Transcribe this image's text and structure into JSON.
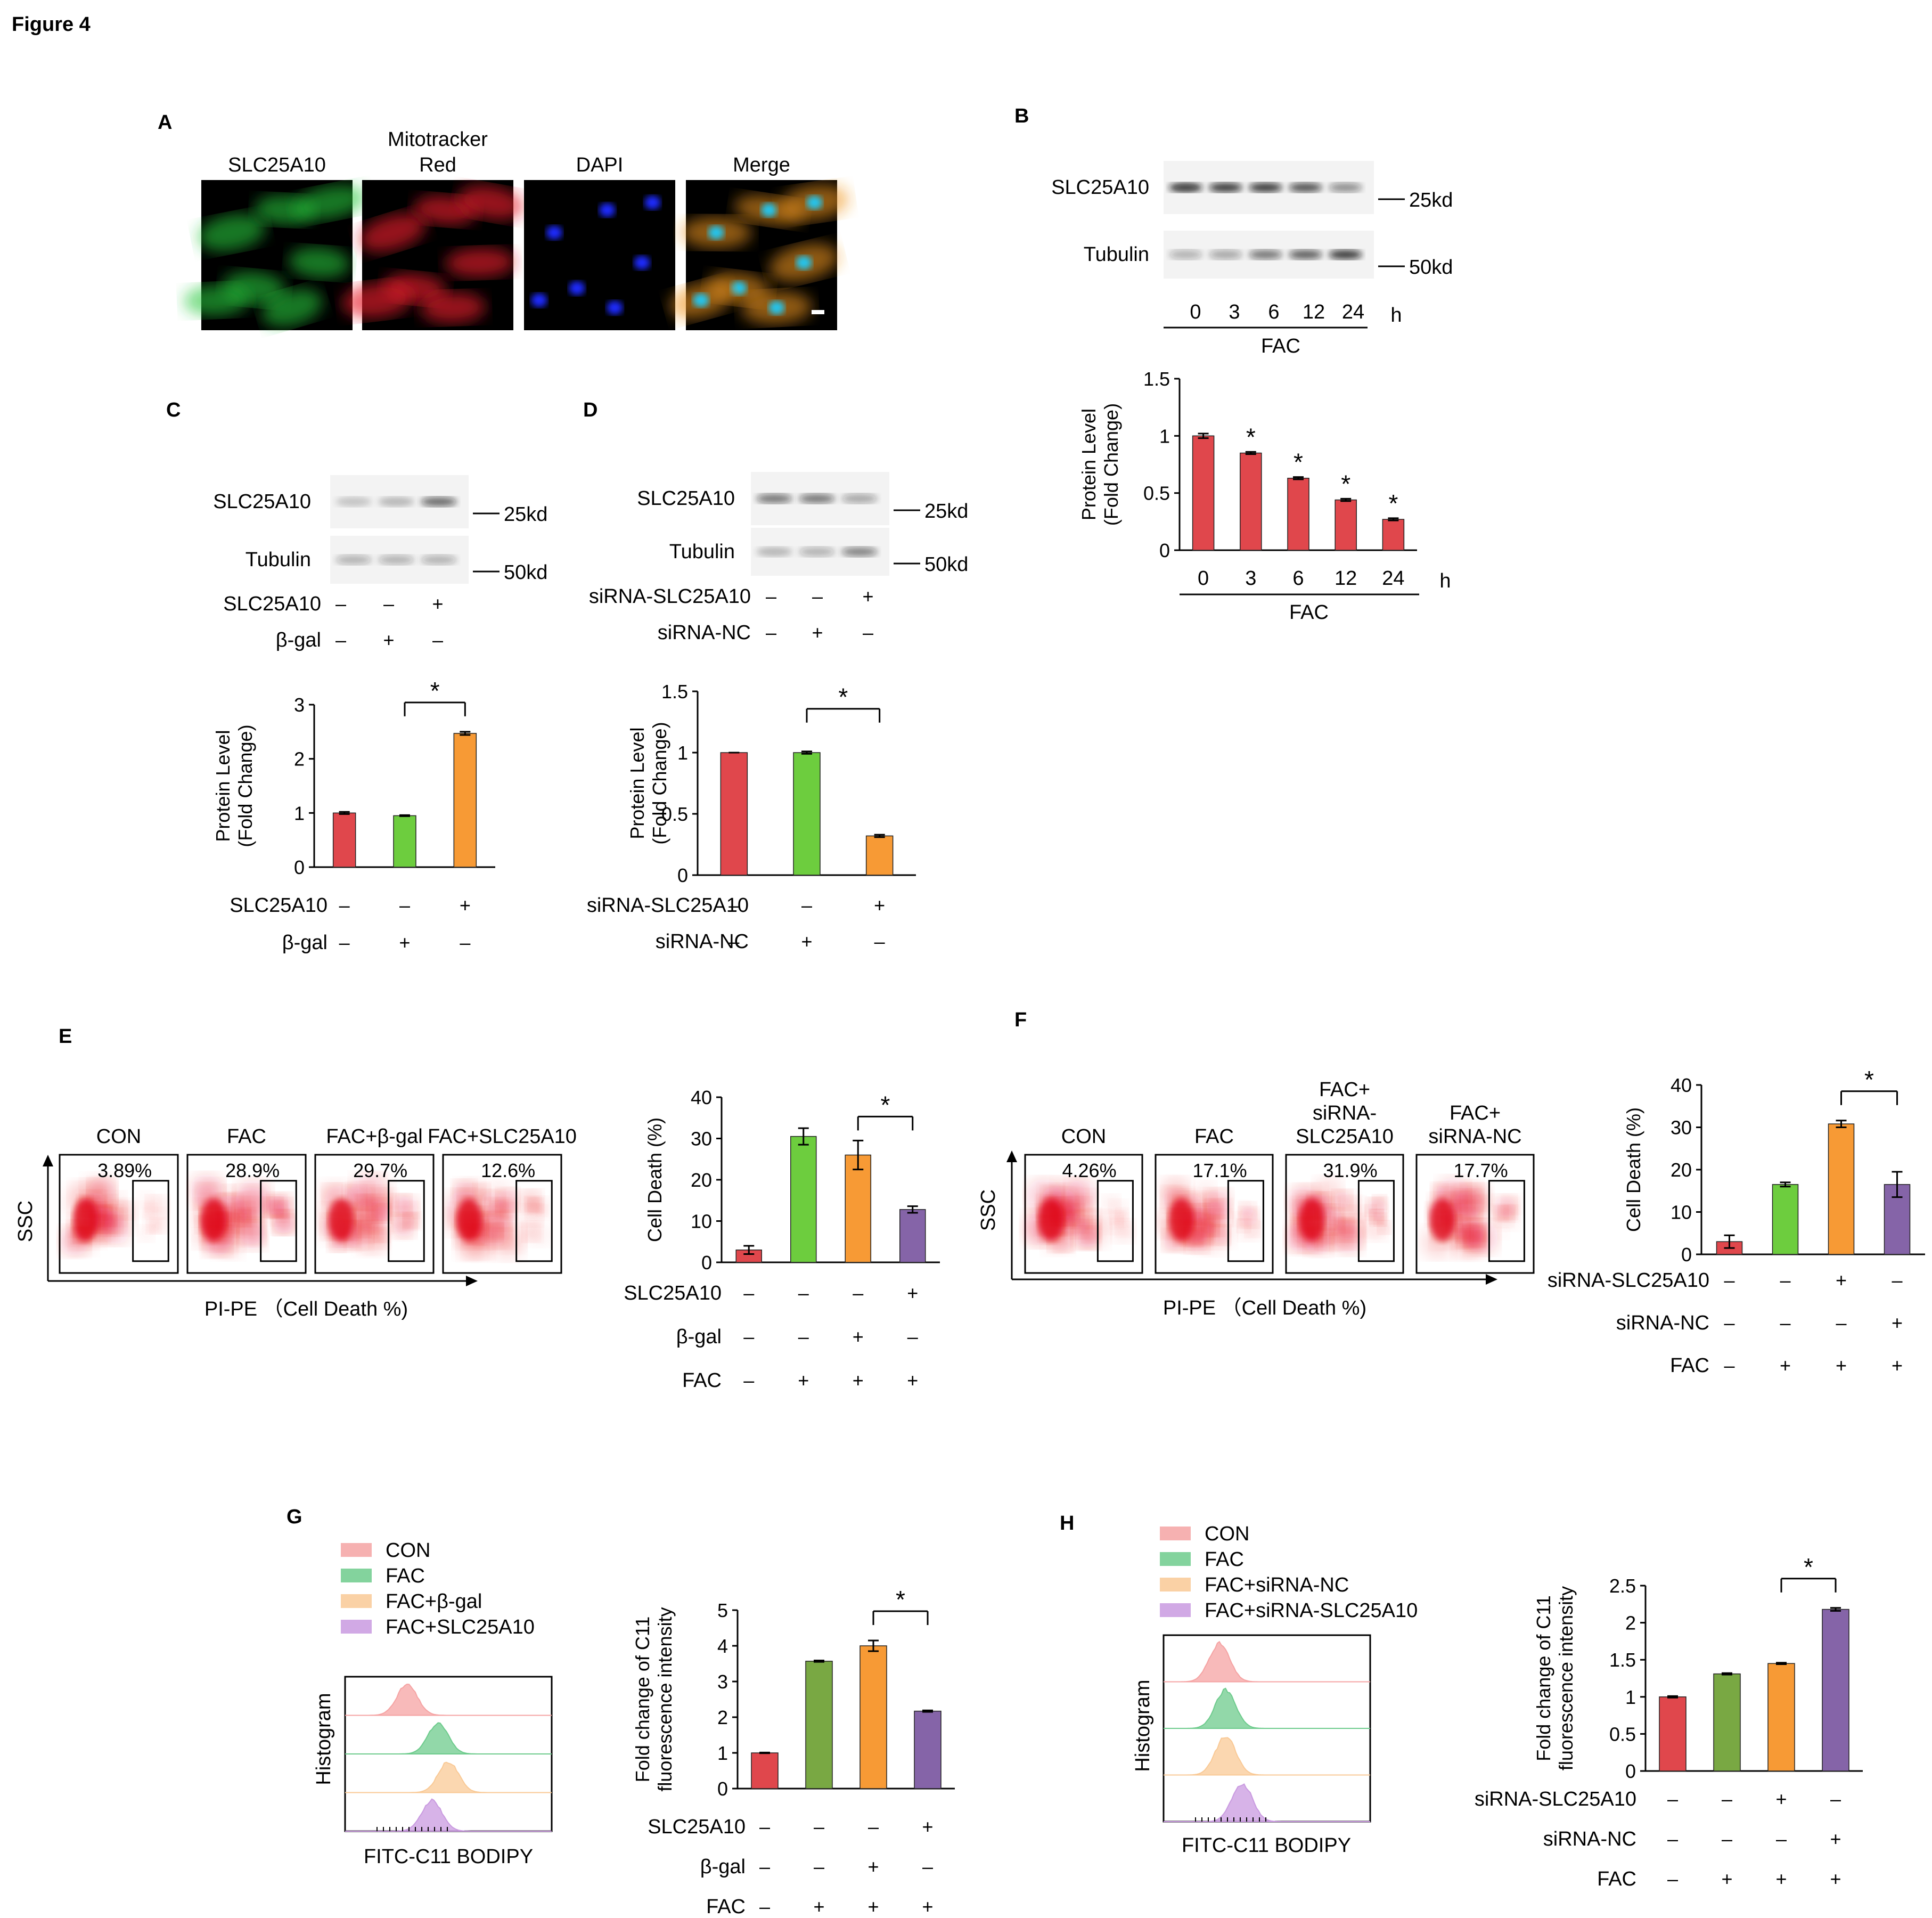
{
  "figure_title": "Figure 4",
  "colors": {
    "red": "#e0474c",
    "green": "#6dcd3e",
    "orange": "#f79a35",
    "purple": "#8564a8",
    "olive": "#79a843",
    "hist_con": "#f5a3a3",
    "hist_fac": "#6dcb8c",
    "hist_gal": "#f9c995",
    "hist_slc": "#c99ae0"
  },
  "panelA": {
    "label": "A",
    "images": [
      {
        "title": "SLC25A10",
        "channel": "green"
      },
      {
        "title": "Mitotracker\nRed",
        "channel": "red"
      },
      {
        "title": "DAPI",
        "channel": "blue"
      },
      {
        "title": "Merge",
        "channel": "merge"
      }
    ]
  },
  "panelB": {
    "label": "B",
    "blot_rows": [
      {
        "name": "SLC25A10",
        "marker": "25kd"
      },
      {
        "name": "Tubulin",
        "marker": "50kd"
      }
    ],
    "lanes": [
      "0",
      "3",
      "6",
      "12",
      "24"
    ],
    "unit": "h",
    "group": "FAC"
  },
  "panelC": {
    "label": "C",
    "blot_rows": [
      {
        "name": "SLC25A10",
        "marker": "25kd"
      },
      {
        "name": "Tubulin",
        "marker": "50kd"
      }
    ],
    "conditions": [
      {
        "name": "SLC25A10",
        "signs": [
          "–",
          "–",
          "+"
        ]
      },
      {
        "name": "β-gal",
        "signs": [
          "–",
          "+",
          "–"
        ]
      }
    ]
  },
  "panelD": {
    "label": "D",
    "blot_rows": [
      {
        "name": "SLC25A10",
        "marker": "25kd"
      },
      {
        "name": "Tubulin",
        "marker": "50kd"
      }
    ],
    "conditions": [
      {
        "name": "siRNA-SLC25A10",
        "signs": [
          "–",
          "–",
          "+"
        ]
      },
      {
        "name": "siRNA-NC",
        "signs": [
          "–",
          "+",
          "–"
        ]
      }
    ]
  },
  "panelE": {
    "label": "E",
    "flow_titles": [
      "CON",
      "FAC",
      "FAC+β-gal",
      "FAC+SLC25A10"
    ],
    "percentages": [
      "3.89%",
      "28.9%",
      "29.7%",
      "12.6%"
    ],
    "y_axis": "SSC",
    "x_axis": "PI-PE （Cell Death %)",
    "conditions": [
      {
        "name": "SLC25A10",
        "signs": [
          "–",
          "–",
          "–",
          "+"
        ]
      },
      {
        "name": "β-gal",
        "signs": [
          "–",
          "–",
          "+",
          "–"
        ]
      },
      {
        "name": "FAC",
        "signs": [
          "–",
          "+",
          "+",
          "+"
        ]
      }
    ]
  },
  "panelF": {
    "label": "F",
    "flow_titles": [
      "CON",
      "FAC",
      "FAC+\nsiRNA-\nSLC25A10",
      "FAC+\nsiRNA-NC"
    ],
    "percentages": [
      "4.26%",
      "17.1%",
      "31.9%",
      "17.7%"
    ],
    "y_axis": "SSC",
    "x_axis": "PI-PE （Cell Death %)",
    "conditions": [
      {
        "name": "siRNA-SLC25A10",
        "signs": [
          "–",
          "–",
          "+",
          "–"
        ]
      },
      {
        "name": "siRNA-NC",
        "signs": [
          "–",
          "–",
          "–",
          "+"
        ]
      },
      {
        "name": "FAC",
        "signs": [
          "–",
          "+",
          "+",
          "+"
        ]
      }
    ]
  },
  "panelG": {
    "label": "G",
    "legend": [
      "CON",
      "FAC",
      "FAC+β-gal",
      "FAC+SLC25A10"
    ],
    "y_axis": "Histogram",
    "x_axis": "FITC-C11 BODIPY",
    "conditions": [
      {
        "name": "SLC25A10",
        "signs": [
          "–",
          "–",
          "–",
          "+"
        ]
      },
      {
        "name": "β-gal",
        "signs": [
          "–",
          "–",
          "+",
          "–"
        ]
      },
      {
        "name": "FAC",
        "signs": [
          "–",
          "+",
          "+",
          "+"
        ]
      }
    ]
  },
  "panelH": {
    "label": "H",
    "legend": [
      "CON",
      "FAC",
      "FAC+siRNA-NC",
      "FAC+siRNA-SLC25A10"
    ],
    "y_axis": "Histogram",
    "x_axis": "FITC-C11 BODIPY",
    "conditions": [
      {
        "name": "siRNA-SLC25A10",
        "signs": [
          "–",
          "–",
          "+",
          "–"
        ]
      },
      {
        "name": "siRNA-NC",
        "signs": [
          "–",
          "–",
          "–",
          "+"
        ]
      },
      {
        "name": "FAC",
        "signs": [
          "–",
          "+",
          "+",
          "+"
        ]
      }
    ]
  },
  "chart_data": [
    {
      "id": "B",
      "type": "bar",
      "categories": [
        "0",
        "3",
        "6",
        "12",
        "24"
      ],
      "values": [
        1.0,
        0.85,
        0.63,
        0.44,
        0.27
      ],
      "errors": [
        0.02,
        0.01,
        0.01,
        0.01,
        0.01
      ],
      "ylabel": "Protein Level\n(Fold Change)",
      "ylim": [
        0,
        1.5
      ],
      "yticks": [
        "0",
        "0.5",
        "1",
        "1.5"
      ],
      "significance": [
        "",
        "*",
        "*",
        "*",
        "*"
      ],
      "bar_colors": [
        "red",
        "red",
        "red",
        "red",
        "red"
      ]
    },
    {
      "id": "C",
      "type": "bar",
      "categories": [
        "1",
        "2",
        "3"
      ],
      "values": [
        1.0,
        0.95,
        2.47
      ],
      "errors": [
        0.02,
        0.01,
        0.03
      ],
      "ylabel": "Protein Level\n(Fold Change)",
      "ylim": [
        0,
        3
      ],
      "yticks": [
        "0",
        "1",
        "2",
        "3"
      ],
      "bracket": {
        "from": 1,
        "to": 2,
        "label": "*"
      },
      "bar_colors": [
        "red",
        "green",
        "orange"
      ]
    },
    {
      "id": "D",
      "type": "bar",
      "categories": [
        "1",
        "2",
        "3"
      ],
      "values": [
        1.0,
        1.0,
        0.32
      ],
      "errors": [
        0.0,
        0.01,
        0.01
      ],
      "ylabel": "Protein Level\n(Fold Change)",
      "ylim": [
        0,
        1.5
      ],
      "yticks": [
        "0",
        "0.5",
        "1",
        "1.5"
      ],
      "bracket": {
        "from": 1,
        "to": 2,
        "label": "*"
      },
      "bar_colors": [
        "red",
        "green",
        "orange"
      ]
    },
    {
      "id": "E",
      "type": "bar",
      "categories": [
        "1",
        "2",
        "3",
        "4"
      ],
      "values": [
        3.0,
        30.5,
        26.0,
        12.8
      ],
      "errors": [
        1.0,
        2.0,
        3.5,
        0.8
      ],
      "ylabel": "Cell Death (%)",
      "ylim": [
        0,
        40
      ],
      "yticks": [
        "0",
        "10",
        "20",
        "30",
        "40"
      ],
      "bracket": {
        "from": 2,
        "to": 3,
        "label": "*"
      },
      "bar_colors": [
        "red",
        "green",
        "orange",
        "purple"
      ]
    },
    {
      "id": "F",
      "type": "bar",
      "categories": [
        "1",
        "2",
        "3",
        "4"
      ],
      "values": [
        3.0,
        16.5,
        30.8,
        16.5
      ],
      "errors": [
        1.5,
        0.5,
        0.8,
        3.0
      ],
      "ylabel": "Cell Death (%)",
      "ylim": [
        0,
        40
      ],
      "yticks": [
        "0",
        "10",
        "20",
        "30",
        "40"
      ],
      "bracket": {
        "from": 2,
        "to": 3,
        "label": "*"
      },
      "bar_colors": [
        "red",
        "green",
        "orange",
        "purple"
      ]
    },
    {
      "id": "G",
      "type": "bar",
      "categories": [
        "1",
        "2",
        "3",
        "4"
      ],
      "values": [
        1.0,
        3.57,
        4.0,
        2.17
      ],
      "errors": [
        0.01,
        0.02,
        0.15,
        0.02
      ],
      "ylabel": "Fold change of C11\nfluorescence intensity",
      "ylim": [
        0,
        5
      ],
      "yticks": [
        "0",
        "1",
        "2",
        "3",
        "4",
        "5"
      ],
      "bracket": {
        "from": 2,
        "to": 3,
        "label": "*"
      },
      "bar_colors": [
        "red",
        "olive",
        "orange",
        "purple"
      ]
    },
    {
      "id": "H",
      "type": "bar",
      "categories": [
        "1",
        "2",
        "3",
        "4"
      ],
      "values": [
        1.0,
        1.31,
        1.45,
        2.18
      ],
      "errors": [
        0.01,
        0.01,
        0.01,
        0.02
      ],
      "ylabel": "Fold change of C11\nfluorescence intensity",
      "ylim": [
        0,
        2.5
      ],
      "yticks": [
        "0",
        "0.5",
        "1",
        "1.5",
        "2",
        "2.5"
      ],
      "bracket": {
        "from": 2,
        "to": 3,
        "label": "*"
      },
      "bar_colors": [
        "red",
        "olive",
        "orange",
        "purple"
      ]
    }
  ]
}
